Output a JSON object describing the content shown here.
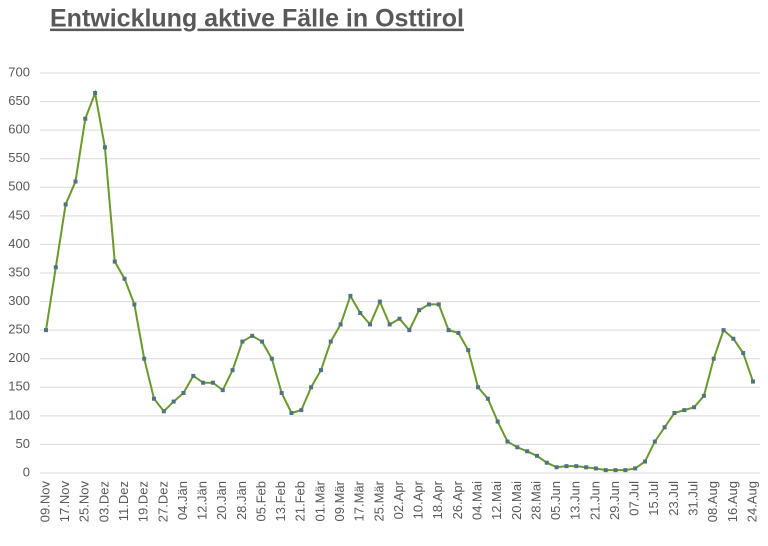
{
  "chart_data": {
    "type": "line",
    "title": "Entwicklung aktive Fälle in Osttirol",
    "categories": [
      "09.Nov",
      null,
      "17.Nov",
      null,
      "25.Nov",
      null,
      "03.Dez",
      null,
      "11.Dez",
      null,
      "19.Dez",
      null,
      "27.Dez",
      null,
      "04.Jän",
      null,
      "12.Jän",
      null,
      "20.Jän",
      null,
      "28.Jän",
      null,
      "05.Feb",
      null,
      "13.Feb",
      null,
      "21.Feb",
      null,
      "01.Mär",
      null,
      "09.Mär",
      null,
      "17.Mär",
      null,
      "25.Mär",
      null,
      "02.Apr",
      null,
      "10.Apr",
      null,
      "18.Apr",
      null,
      "26.Apr",
      null,
      "04.Mai",
      null,
      "12.Mai",
      null,
      "20.Mai",
      null,
      "28.Mai",
      null,
      "05.Jun",
      null,
      "13.Jun",
      null,
      "21.Jun",
      null,
      "29.Jun",
      null,
      "07.Jul",
      null,
      "15.Jul",
      null,
      "23.Jul",
      null,
      "31.Jul",
      null,
      "08.Aug",
      null,
      "16.Aug",
      null,
      "24.Aug"
    ],
    "series": [
      {
        "color": "#6a9a2b",
        "marker_color": "#4f7383",
        "values": [
          250,
          360,
          470,
          510,
          620,
          665,
          570,
          370,
          340,
          295,
          200,
          130,
          108,
          125,
          140,
          170,
          158,
          158,
          145,
          180,
          230,
          240,
          230,
          200,
          140,
          105,
          110,
          150,
          180,
          230,
          260,
          310,
          280,
          260,
          300,
          260,
          270,
          250,
          285,
          295,
          295,
          250,
          245,
          215,
          150,
          130,
          90,
          55,
          45,
          38,
          30,
          18,
          10,
          12,
          12,
          10,
          8,
          5,
          5,
          5,
          8,
          20,
          55,
          80,
          105,
          110,
          115,
          135,
          200,
          250,
          235,
          210,
          160
        ]
      }
    ],
    "ylim": [
      0,
      700
    ],
    "yticks": [
      0,
      50,
      100,
      150,
      200,
      250,
      300,
      350,
      400,
      450,
      500,
      550,
      600,
      650,
      700
    ],
    "grid": true
  }
}
